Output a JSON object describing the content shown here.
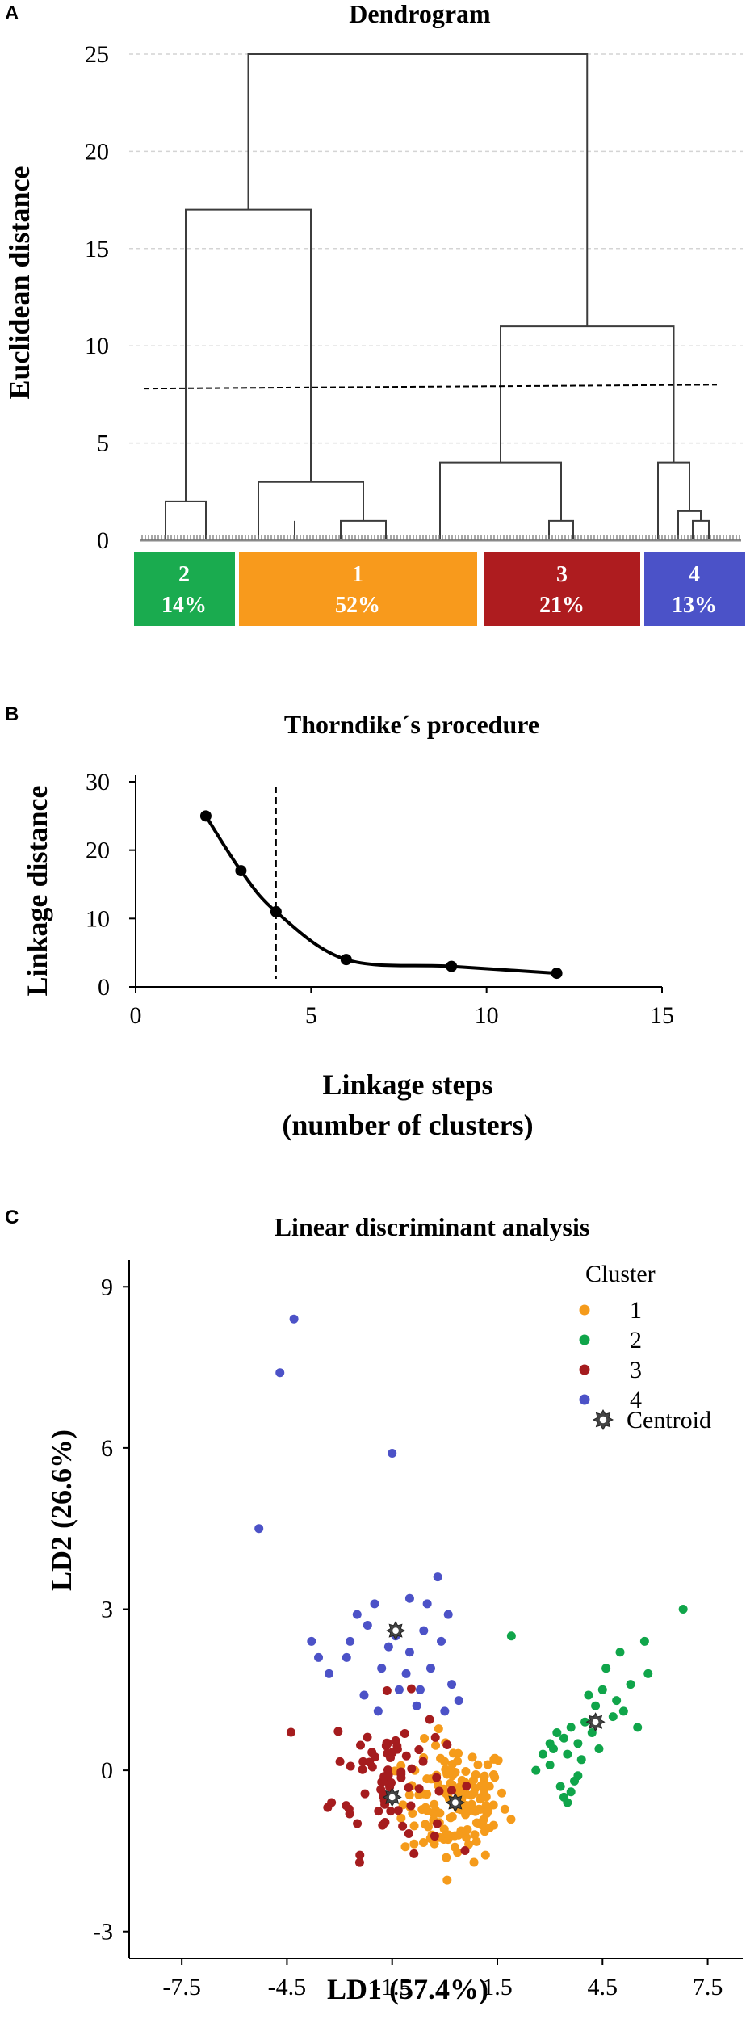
{
  "panels": {
    "A": {
      "letter": "A",
      "title": "Dendrogram"
    },
    "B": {
      "letter": "B",
      "title": "Thorndike´s procedure"
    },
    "C": {
      "letter": "C",
      "title": "Linear discriminant analysis"
    }
  },
  "chart_data": [
    {
      "type": "dendrogram",
      "title": "Dendrogram",
      "ylabel": "Euclidean distance",
      "ylim": [
        0,
        25
      ],
      "yticks": [
        0,
        5,
        10,
        15,
        20,
        25
      ],
      "grid": true,
      "cut_height": 7.8,
      "merge_heights": [
        25,
        17,
        11,
        4,
        3,
        3,
        2,
        1.5,
        1
      ],
      "clusters": [
        {
          "id": "2",
          "share": "14%",
          "color": "#1aab4f"
        },
        {
          "id": "1",
          "share": "52%",
          "color": "#f89a1c"
        },
        {
          "id": "3",
          "share": "21%",
          "color": "#ae1c1f"
        },
        {
          "id": "4",
          "share": "13%",
          "color": "#4b52c8"
        }
      ]
    },
    {
      "type": "line",
      "title": "Thorndike´s procedure",
      "xlabel": "Linkage steps",
      "xlabel2": "(number of clusters)",
      "ylabel": "Linkage distance",
      "xlim": [
        0,
        15
      ],
      "ylim": [
        0,
        30
      ],
      "xticks": [
        0,
        5,
        10,
        15
      ],
      "yticks": [
        0,
        10,
        20,
        30
      ],
      "x": [
        2,
        3,
        4,
        6,
        9,
        12
      ],
      "y": [
        25,
        17,
        11,
        4,
        3,
        2
      ],
      "vline_x": 4
    },
    {
      "type": "scatter",
      "title": "Linear discriminant analysis",
      "xlabel": "LD1 (57.4%)",
      "ylabel": "LD2 (26.6%)",
      "xlim": [
        -9,
        8.5
      ],
      "ylim": [
        -3.5,
        9.5
      ],
      "xticks": [
        "-7.5",
        "-4.5",
        "-1.5",
        "1.5",
        "4.5",
        "7.5"
      ],
      "yticks": [
        "-3",
        "0",
        "3",
        "6",
        "9"
      ],
      "legend_title": "Cluster",
      "legend_position": "top-right",
      "series": [
        {
          "name": "1",
          "color": "#f59b1b",
          "center": [
            0.3,
            -0.6
          ],
          "spread": [
            0.75,
            0.55
          ],
          "count": 150
        },
        {
          "name": "2",
          "color": "#10a54a",
          "points": [
            [
              1.9,
              2.5
            ],
            [
              3.0,
              0.5
            ],
            [
              3.2,
              0.7
            ],
            [
              3.4,
              0.6
            ],
            [
              3.5,
              0.3
            ],
            [
              3.6,
              0.8
            ],
            [
              3.8,
              0.5
            ],
            [
              3.9,
              0.2
            ],
            [
              4.0,
              0.9
            ],
            [
              4.2,
              0.7
            ],
            [
              4.3,
              1.2
            ],
            [
              4.5,
              1.5
            ],
            [
              4.6,
              1.9
            ],
            [
              4.8,
              1.0
            ],
            [
              5.0,
              2.2
            ],
            [
              5.3,
              1.6
            ],
            [
              5.5,
              0.8
            ],
            [
              5.7,
              2.4
            ],
            [
              5.8,
              1.8
            ],
            [
              6.8,
              3.0
            ],
            [
              2.8,
              0.3
            ],
            [
              3.1,
              0.4
            ],
            [
              3.3,
              -0.3
            ],
            [
              3.4,
              -0.5
            ],
            [
              3.6,
              -0.4
            ],
            [
              3.7,
              -0.2
            ],
            [
              3.5,
              -0.6
            ],
            [
              4.1,
              1.4
            ],
            [
              4.4,
              0.4
            ],
            [
              5.1,
              1.1
            ],
            [
              3.0,
              0.1
            ],
            [
              2.6,
              0.0
            ],
            [
              3.8,
              -0.1
            ],
            [
              4.9,
              1.3
            ]
          ]
        },
        {
          "name": "3",
          "color": "#a51c1e",
          "center": [
            -1.6,
            -0.1
          ],
          "spread": [
            0.8,
            0.7
          ],
          "count": 75
        },
        {
          "name": "4",
          "color": "#4c52c7",
          "points": [
            [
              -4.3,
              8.4
            ],
            [
              -4.7,
              7.4
            ],
            [
              -1.5,
              5.9
            ],
            [
              -5.3,
              4.5
            ],
            [
              -3.6,
              2.1
            ],
            [
              -3.8,
              2.4
            ],
            [
              -2.7,
              2.4
            ],
            [
              -2.5,
              2.9
            ],
            [
              -2.2,
              2.7
            ],
            [
              -2.0,
              3.1
            ],
            [
              -1.8,
              1.9
            ],
            [
              -1.6,
              2.3
            ],
            [
              -1.4,
              2.5
            ],
            [
              -1.3,
              1.5
            ],
            [
              -1.1,
              1.8
            ],
            [
              -1.0,
              2.2
            ],
            [
              -0.8,
              1.2
            ],
            [
              -0.6,
              2.6
            ],
            [
              -0.4,
              1.9
            ],
            [
              -0.2,
              3.6
            ],
            [
              -0.1,
              2.4
            ],
            [
              0.1,
              2.9
            ],
            [
              0.2,
              1.6
            ],
            [
              0.4,
              1.3
            ],
            [
              -1.0,
              3.2
            ],
            [
              -0.7,
              1.5
            ],
            [
              -1.9,
              1.1
            ],
            [
              -2.3,
              1.4
            ],
            [
              -0.5,
              3.1
            ],
            [
              0.0,
              1.1
            ],
            [
              -3.3,
              1.8
            ],
            [
              -2.8,
              2.1
            ]
          ]
        }
      ],
      "centroid_label": "Centroid",
      "centroids": [
        [
          0.3,
          -0.6
        ],
        [
          4.3,
          0.9
        ],
        [
          -1.5,
          -0.5
        ],
        [
          -1.4,
          2.6
        ]
      ]
    }
  ]
}
